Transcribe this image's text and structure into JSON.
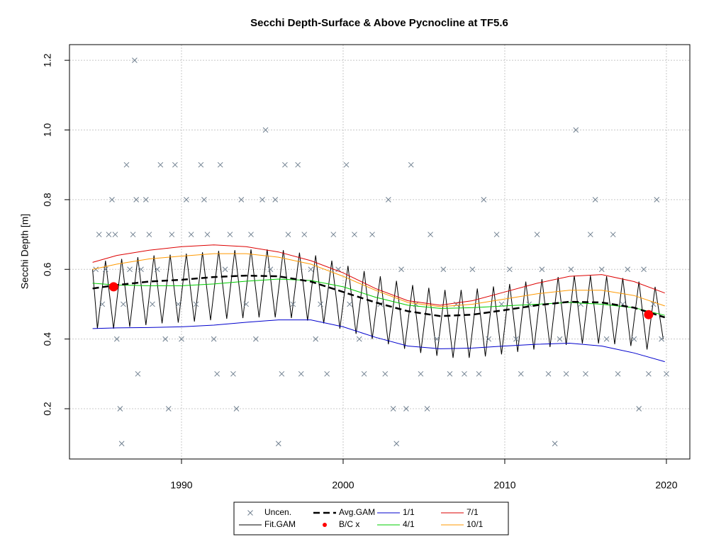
{
  "chart_data": {
    "type": "line",
    "title": "Secchi Depth-Surface & Above Pycnocline at TF5.6",
    "y_label": "Secchi Depth [m]",
    "xlim": [
      1983.07,
      2021.45
    ],
    "ylim": [
      0.0557,
      1.245
    ],
    "xticks": [
      1990,
      2000,
      2010,
      2020
    ],
    "yticks": [
      0.2,
      0.4,
      0.6,
      0.8,
      {
        "value": 1,
        "label": "1.0"
      },
      1.2
    ],
    "grid": true,
    "series": [
      {
        "name": "Uncen.",
        "kind": "scatter",
        "color": "#708090",
        "x": [
          1984.7,
          1984.9,
          1985.1,
          1985.3,
          1985.5,
          1985.7,
          1985.9,
          1986,
          1986.2,
          1986.3,
          1986.4,
          1986.6,
          1986.8,
          1987,
          1987.1,
          1987.2,
          1987.3,
          1987.5,
          1987.8,
          1988,
          1988.2,
          1988.5,
          1988.7,
          1989,
          1989.2,
          1989.4,
          1989.6,
          1989.8,
          1990,
          1990.3,
          1990.6,
          1990.9,
          1991.2,
          1991.4,
          1991.6,
          1992,
          1992.2,
          1992.4,
          1992.7,
          1993,
          1993.2,
          1993.4,
          1993.7,
          1994,
          1994.3,
          1994.6,
          1995,
          1995.2,
          1995.5,
          1995.8,
          1996,
          1996.2,
          1996.4,
          1996.6,
          1996.9,
          1997.2,
          1997.4,
          1997.6,
          1998,
          1998.3,
          1998.6,
          1999,
          1999.4,
          1999.7,
          2000.2,
          2000.4,
          2000.7,
          2001,
          2001.3,
          2001.8,
          2002.3,
          2002.6,
          2002.8,
          2003.1,
          2003.3,
          2003.6,
          2003.9,
          2004.2,
          2004.5,
          2004.8,
          2005.2,
          2005.4,
          2005.8,
          2006.2,
          2006.6,
          2007,
          2007.5,
          2008,
          2008.4,
          2008.7,
          2009,
          2009.5,
          2009.8,
          2010.3,
          2010.7,
          2011,
          2011.5,
          2012,
          2012.3,
          2012.7,
          2013.1,
          2013.4,
          2013.8,
          2014.1,
          2014.4,
          2014.7,
          2015,
          2015.3,
          2015.6,
          2016,
          2016.3,
          2016.7,
          2017,
          2017.3,
          2017.6,
          2018,
          2018.3,
          2018.6,
          2018.9,
          2019.2,
          2019.4,
          2019.7,
          2020
        ],
        "values": [
          0.6,
          0.7,
          0.5,
          0.6,
          0.7,
          0.8,
          0.7,
          0.4,
          0.2,
          0.1,
          0.5,
          0.9,
          0.6,
          0.7,
          1.2,
          0.8,
          0.3,
          0.6,
          0.8,
          0.7,
          0.5,
          0.6,
          0.9,
          0.4,
          0.2,
          0.7,
          0.9,
          0.5,
          0.4,
          0.8,
          0.7,
          0.5,
          0.9,
          0.8,
          0.7,
          0.4,
          0.3,
          0.9,
          0.6,
          0.7,
          0.3,
          0.2,
          0.8,
          0.5,
          0.7,
          0.4,
          0.8,
          1.0,
          0.6,
          0.8,
          0.1,
          0.3,
          0.9,
          0.7,
          0.5,
          0.9,
          0.3,
          0.7,
          0.6,
          0.4,
          0.5,
          0.3,
          0.7,
          0.6,
          0.9,
          0.5,
          0.7,
          0.4,
          0.3,
          0.7,
          0.5,
          0.3,
          0.8,
          0.2,
          0.1,
          0.6,
          0.2,
          0.9,
          0.5,
          0.3,
          0.2,
          0.7,
          0.4,
          0.6,
          0.3,
          0.5,
          0.3,
          0.6,
          0.3,
          0.8,
          0.4,
          0.7,
          0.5,
          0.6,
          0.4,
          0.3,
          0.5,
          0.7,
          0.6,
          0.3,
          0.1,
          0.4,
          0.3,
          0.6,
          1.0,
          0.5,
          0.3,
          0.7,
          0.8,
          0.6,
          0.4,
          0.7,
          0.3,
          0.5,
          0.6,
          0.4,
          0.2,
          0.6,
          0.3,
          0.5,
          0.8,
          0.4,
          0.3
        ]
      },
      {
        "name": "Fit.GAM",
        "kind": "line",
        "color": "#000000",
        "x": [
          1984.5,
          1984.8,
          1985.3,
          1985.8,
          1986.3,
          1986.8,
          1987.3,
          1987.8,
          1988.3,
          1988.8,
          1989.3,
          1989.8,
          1990.3,
          1990.8,
          1991.3,
          1991.8,
          1992.3,
          1992.8,
          1993.3,
          1993.8,
          1994.3,
          1994.8,
          1995.3,
          1995.8,
          1996.3,
          1996.8,
          1997.3,
          1997.8,
          1998.3,
          1998.8,
          1999.3,
          1999.8,
          2000.3,
          2000.8,
          2001.3,
          2001.8,
          2002.3,
          2002.8,
          2003.3,
          2003.8,
          2004.3,
          2004.8,
          2005.3,
          2005.8,
          2006.3,
          2006.8,
          2007.3,
          2007.8,
          2008.3,
          2008.8,
          2009.3,
          2009.8,
          2010.3,
          2010.8,
          2011.3,
          2011.8,
          2012.3,
          2012.8,
          2013.3,
          2013.8,
          2014.3,
          2014.8,
          2015.3,
          2015.8,
          2016.3,
          2016.8,
          2017.3,
          2017.8,
          2018.3,
          2018.8,
          2019.3,
          2019.8
        ],
        "values": [
          0.6,
          0.43,
          0.625,
          0.43,
          0.63,
          0.435,
          0.635,
          0.44,
          0.64,
          0.445,
          0.642,
          0.447,
          0.645,
          0.45,
          0.649,
          0.454,
          0.653,
          0.458,
          0.655,
          0.46,
          0.657,
          0.462,
          0.657,
          0.462,
          0.655,
          0.46,
          0.648,
          0.453,
          0.64,
          0.445,
          0.625,
          0.43,
          0.61,
          0.415,
          0.595,
          0.4,
          0.58,
          0.385,
          0.567,
          0.372,
          0.555,
          0.36,
          0.547,
          0.352,
          0.541,
          0.346,
          0.541,
          0.346,
          0.545,
          0.35,
          0.551,
          0.356,
          0.558,
          0.363,
          0.565,
          0.37,
          0.572,
          0.377,
          0.578,
          0.383,
          0.582,
          0.387,
          0.582,
          0.387,
          0.58,
          0.385,
          0.575,
          0.38,
          0.565,
          0.37,
          0.55,
          0.4
        ]
      },
      {
        "name": "Avg.GAM",
        "kind": "dashed",
        "color": "#000000",
        "x": [
          1984.5,
          1986,
          1988,
          1990,
          1992,
          1994,
          1996,
          1998,
          2000,
          2002,
          2004,
          2006,
          2008,
          2010,
          2012,
          2014,
          2016,
          2018,
          2019.9
        ],
        "values": [
          0.545,
          0.555,
          0.565,
          0.57,
          0.578,
          0.582,
          0.58,
          0.565,
          0.535,
          0.505,
          0.48,
          0.466,
          0.47,
          0.483,
          0.497,
          0.507,
          0.505,
          0.49,
          0.462
        ]
      },
      {
        "name": "B/C x",
        "kind": "dot",
        "color": "#ff0000",
        "x": [
          1985.8,
          2018.9
        ],
        "values": [
          0.55,
          0.47
        ]
      },
      {
        "name": "1/1",
        "kind": "line",
        "color": "#0000cd",
        "x": [
          1984.5,
          1986,
          1988,
          1990,
          1992,
          1994,
          1996,
          1998,
          2000,
          2002,
          2004,
          2006,
          2008,
          2010,
          2012,
          2014,
          2016,
          2018,
          2019.9
        ],
        "values": [
          0.43,
          0.432,
          0.433,
          0.435,
          0.44,
          0.448,
          0.455,
          0.455,
          0.435,
          0.405,
          0.38,
          0.372,
          0.374,
          0.38,
          0.385,
          0.388,
          0.38,
          0.36,
          0.335
        ]
      },
      {
        "name": "4/1",
        "kind": "line",
        "color": "#00cc00",
        "x": [
          1984.5,
          1986,
          1988,
          1990,
          1992,
          1994,
          1996,
          1998,
          2000,
          2002,
          2004,
          2006,
          2008,
          2010,
          2012,
          2014,
          2016,
          2018,
          2019.9
        ],
        "values": [
          0.56,
          0.555,
          0.553,
          0.553,
          0.558,
          0.566,
          0.572,
          0.568,
          0.55,
          0.52,
          0.497,
          0.488,
          0.49,
          0.495,
          0.5,
          0.505,
          0.5,
          0.49,
          0.468
        ]
      },
      {
        "name": "7/1",
        "kind": "line",
        "color": "#dd0000",
        "x": [
          1984.5,
          1986,
          1988,
          1990,
          1992,
          1994,
          1996,
          1998,
          2000,
          2002,
          2004,
          2006,
          2008,
          2010,
          2012,
          2014,
          2016,
          2018,
          2019.9
        ],
        "values": [
          0.62,
          0.64,
          0.655,
          0.665,
          0.67,
          0.665,
          0.65,
          0.625,
          0.59,
          0.545,
          0.51,
          0.497,
          0.51,
          0.535,
          0.56,
          0.58,
          0.585,
          0.565,
          0.532
        ]
      },
      {
        "name": "10/1",
        "kind": "line",
        "color": "#ff9900",
        "x": [
          1984.5,
          1986,
          1988,
          1990,
          1992,
          1994,
          1996,
          1998,
          2000,
          2002,
          2004,
          2006,
          2008,
          2010,
          2012,
          2014,
          2016,
          2018,
          2019.9
        ],
        "values": [
          0.6,
          0.615,
          0.63,
          0.638,
          0.645,
          0.645,
          0.635,
          0.615,
          0.58,
          0.54,
          0.505,
          0.493,
          0.5,
          0.515,
          0.53,
          0.54,
          0.54,
          0.525,
          0.495
        ]
      }
    ]
  }
}
